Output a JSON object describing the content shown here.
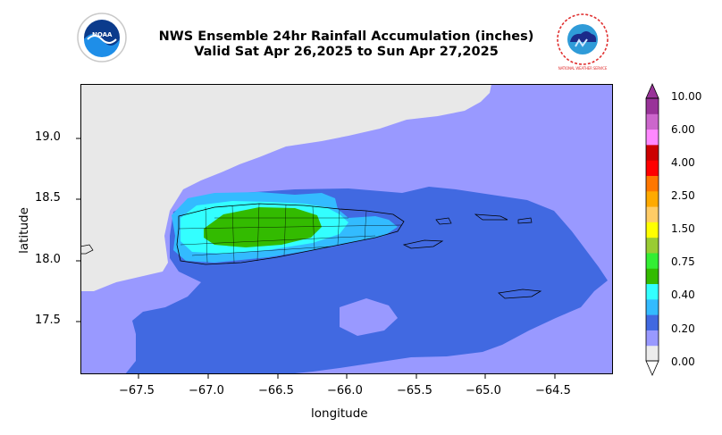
{
  "header": {
    "title_line1": "NWS Ensemble 24hr Rainfall Accumulation (inches)",
    "title_line2": "Valid Sat Apr 26,2025 to Sun Apr 27,2025",
    "left_logo_text": "NOAA",
    "right_logo_text": "NATIONAL WEATHER SERVICE"
  },
  "map": {
    "xlabel": "longitude",
    "ylabel": "latitude",
    "x_ticks": [
      "−67.5",
      "−67.0",
      "−66.5",
      "−66.0",
      "−65.5",
      "−65.0",
      "−64.5"
    ],
    "y_ticks": [
      "19.0",
      "18.5",
      "18.0",
      "17.5"
    ],
    "x_range": [
      -67.95,
      -64.05
    ],
    "y_range": [
      17.05,
      19.45
    ],
    "colors": {
      "land_no_data": "#e8e8e8",
      "light": "#9999ff",
      "medium": "#4169e1",
      "sky": "#33bbff",
      "cyan": "#33ffff",
      "green": "#33bb00"
    }
  },
  "colorbar": {
    "labels": [
      "0.00",
      "0.20",
      "0.40",
      "0.75",
      "1.50",
      "2.50",
      "4.00",
      "6.00",
      "10.00"
    ],
    "colors": [
      "#ececec",
      "#9999ff",
      "#4169e1",
      "#33bbff",
      "#33ffff",
      "#33bb00",
      "#33ee33",
      "#99cc33",
      "#ffff00",
      "#ffcc66",
      "#ffaa00",
      "#ff7700",
      "#ff0000",
      "#cc0000",
      "#ff88ff",
      "#cc66cc",
      "#993399"
    ],
    "extend_over_color": "#993399",
    "extend_under_color": "#ffffff"
  }
}
